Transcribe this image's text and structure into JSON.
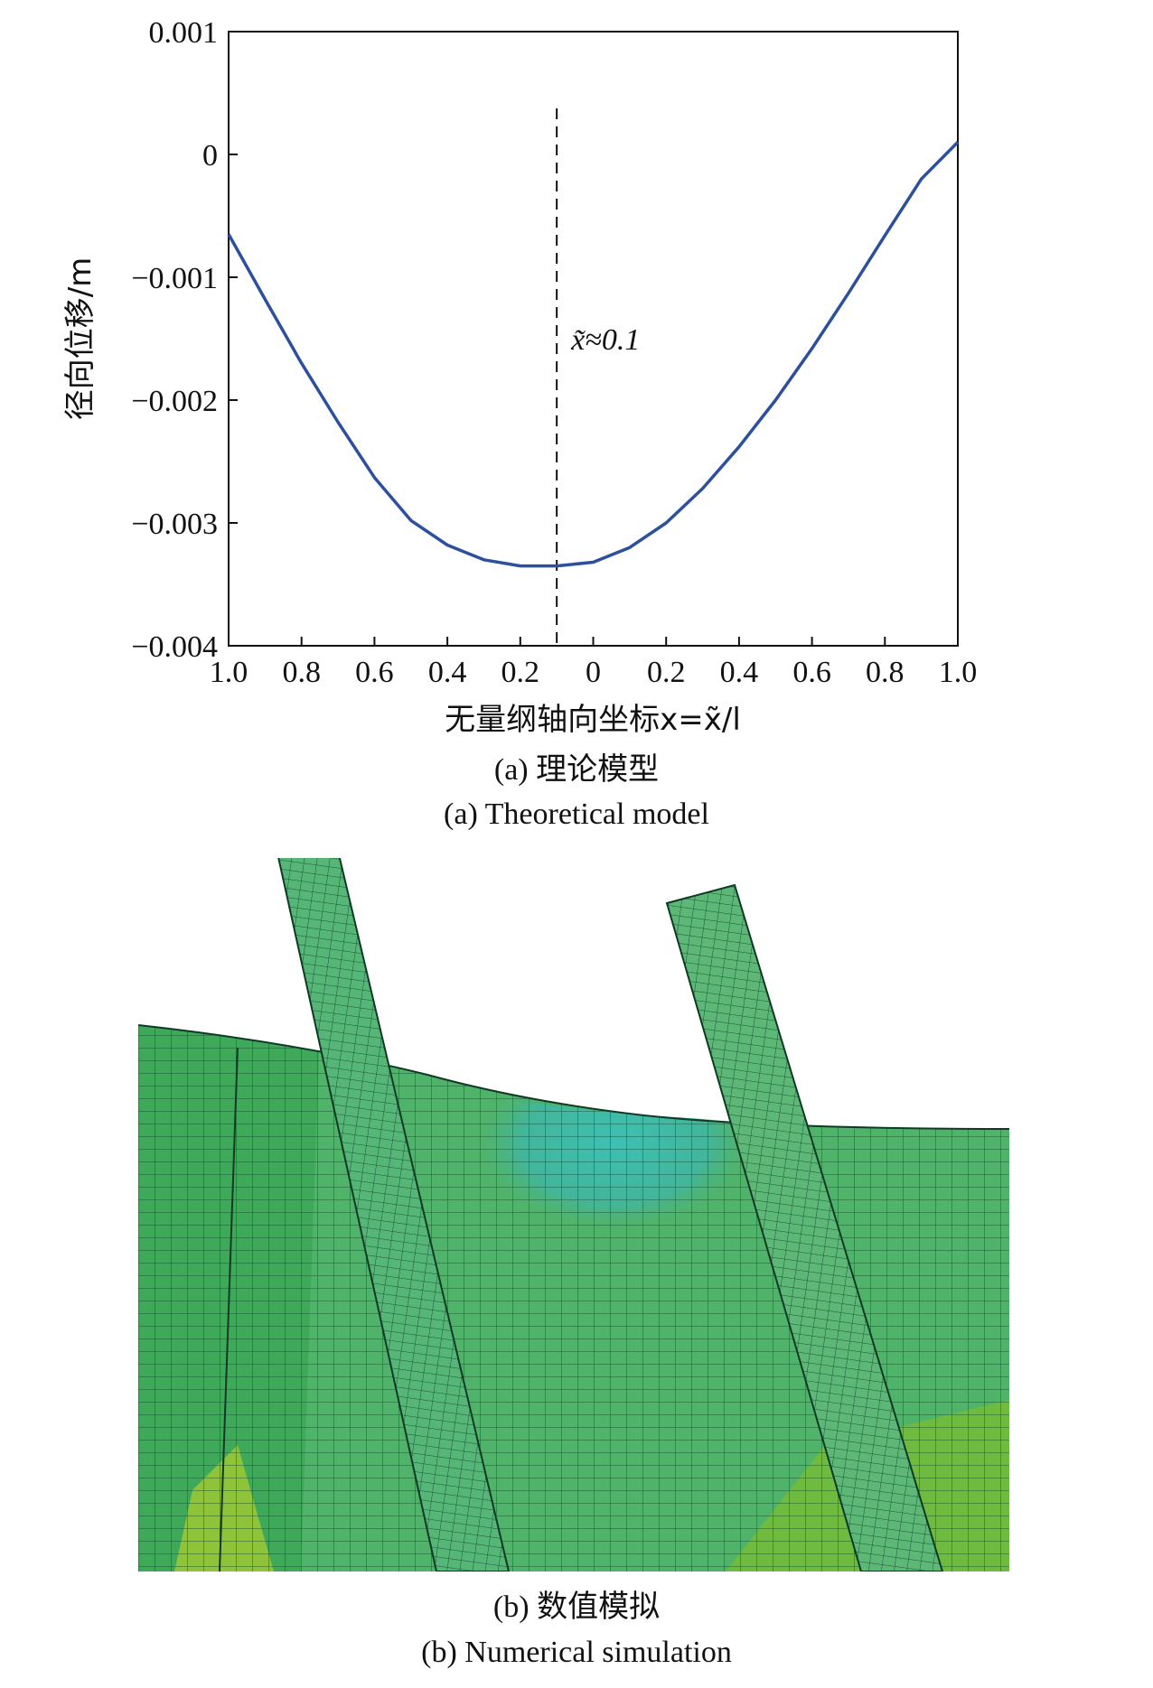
{
  "chart_data": {
    "type": "line",
    "xlabel": "无量纲轴向坐标x=x̃/l",
    "ylabel": "径向位移/m",
    "x_tick_labels": [
      "1.0",
      "0.8",
      "0.6",
      "0.4",
      "0.2",
      "0",
      "0.2",
      "0.4",
      "0.6",
      "0.8",
      "1.0"
    ],
    "x_signed_positions": [
      -1.0,
      -0.8,
      -0.6,
      -0.4,
      -0.2,
      0,
      0.2,
      0.4,
      0.6,
      0.8,
      1.0
    ],
    "y_tick_labels": [
      "0.001",
      "0",
      "−0.001",
      "−0.002",
      "−0.003",
      "−0.004"
    ],
    "y_tick_values": [
      0.001,
      0,
      -0.001,
      -0.002,
      -0.003,
      -0.004
    ],
    "xlim": [
      -1.0,
      1.0
    ],
    "ylim": [
      -0.004,
      0.001
    ],
    "grid": false,
    "series": [
      {
        "color": "#2c4f9e",
        "x": [
          -1.0,
          -0.9,
          -0.8,
          -0.7,
          -0.6,
          -0.5,
          -0.4,
          -0.3,
          -0.2,
          -0.1,
          0,
          0.1,
          0.2,
          0.3,
          0.4,
          0.5,
          0.6,
          0.7,
          0.8,
          0.9,
          1.0
        ],
        "y": [
          -0.00065,
          -0.00118,
          -0.0017,
          -0.00218,
          -0.00263,
          -0.00298,
          -0.00318,
          -0.0033,
          -0.00335,
          -0.00335,
          -0.00332,
          -0.0032,
          -0.003,
          -0.00272,
          -0.00238,
          -0.002,
          -0.00158,
          -0.00113,
          -0.00066,
          -0.0002,
          0.0001
        ]
      }
    ],
    "vline": {
      "x": -0.1,
      "style": "dashed",
      "color": "#111111"
    },
    "annotation": {
      "text": "x̃≈0.1",
      "x": -0.1,
      "y": -0.0015
    }
  },
  "captions": {
    "a_cn": "(a) 理论模型",
    "a_en": "(a) Theoretical model",
    "b_cn": "(b) 数值模拟",
    "b_en": "(b) Numerical simulation"
  }
}
